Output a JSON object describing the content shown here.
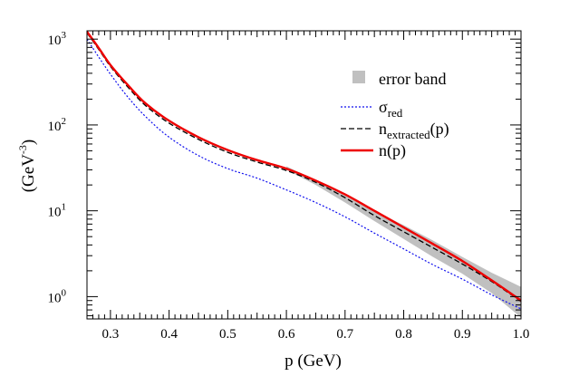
{
  "chart_data": {
    "type": "line",
    "title": "",
    "xlabel": "p (GeV)",
    "ylabel": "(GeV",
    "ylabel_sup": "-3",
    "ylabel_close": ")",
    "xlim": [
      0.26,
      1.0
    ],
    "ylim": [
      0.55,
      1250
    ],
    "yscale": "log",
    "grid": false,
    "legend_placement": "top-right",
    "x_ticks": [
      0.3,
      0.4,
      0.5,
      0.6,
      0.7,
      0.8,
      0.9,
      1.0
    ],
    "x_tick_labels": [
      "0.3",
      "0.4",
      "0.5",
      "0.6",
      "0.7",
      "0.8",
      "0.9",
      "1.0"
    ],
    "y_ticks": [
      {
        "value": 1,
        "base": "10",
        "exp": "0"
      },
      {
        "value": 10,
        "base": "10",
        "exp": "1"
      },
      {
        "value": 100,
        "base": "10",
        "exp": "2"
      },
      {
        "value": 1000,
        "base": "10",
        "exp": "3"
      }
    ],
    "band": {
      "legend": "error band",
      "color": "#c0c0c0",
      "x": [
        0.6,
        0.65,
        0.7,
        0.75,
        0.8,
        0.85,
        0.9,
        0.95,
        1.0
      ],
      "lower": [
        30,
        20,
        12.5,
        7.6,
        4.7,
        2.9,
        1.85,
        1.1,
        0.57
      ],
      "upper": [
        33,
        22.5,
        15,
        10,
        6.8,
        4.5,
        2.9,
        1.9,
        1.3
      ]
    },
    "series": [
      {
        "name": "σ",
        "name_sub": "red",
        "color": "#1010ee",
        "dash": "2,2",
        "width": 1.2,
        "x": [
          0.26,
          0.28,
          0.3,
          0.33,
          0.36,
          0.4,
          0.45,
          0.5,
          0.55,
          0.6,
          0.65,
          0.7,
          0.75,
          0.8,
          0.85,
          0.9,
          0.95,
          1.0
        ],
        "y": [
          1000,
          620,
          390,
          210,
          125,
          72,
          44,
          31,
          24,
          17.5,
          12.5,
          8.5,
          5.5,
          3.6,
          2.35,
          1.6,
          1.05,
          0.72
        ]
      },
      {
        "name": "n",
        "name_sub": "extracted",
        "name_suffix": "(p)",
        "color": "#000000",
        "dash": "6,3",
        "width": 1.3,
        "x": [
          0.26,
          0.28,
          0.3,
          0.33,
          0.36,
          0.4,
          0.45,
          0.5,
          0.55,
          0.6,
          0.65,
          0.7,
          0.75,
          0.8,
          0.85,
          0.9,
          0.95,
          1.0
        ],
        "y": [
          1180,
          760,
          480,
          275,
          168,
          105,
          68,
          48,
          37,
          29.5,
          21.5,
          14.2,
          8.8,
          5.7,
          3.7,
          2.4,
          1.5,
          0.88
        ]
      },
      {
        "name": "n(p)",
        "color": "#ee0000",
        "dash": "",
        "width": 2.4,
        "x": [
          0.26,
          0.28,
          0.3,
          0.33,
          0.36,
          0.4,
          0.45,
          0.5,
          0.55,
          0.6,
          0.65,
          0.7,
          0.75,
          0.8,
          0.85,
          0.9,
          0.95,
          1.0
        ],
        "y": [
          1220,
          790,
          500,
          290,
          178,
          112,
          72,
          51,
          39,
          31,
          22.5,
          15.5,
          10,
          6.4,
          4.1,
          2.6,
          1.55,
          0.9
        ]
      }
    ]
  }
}
